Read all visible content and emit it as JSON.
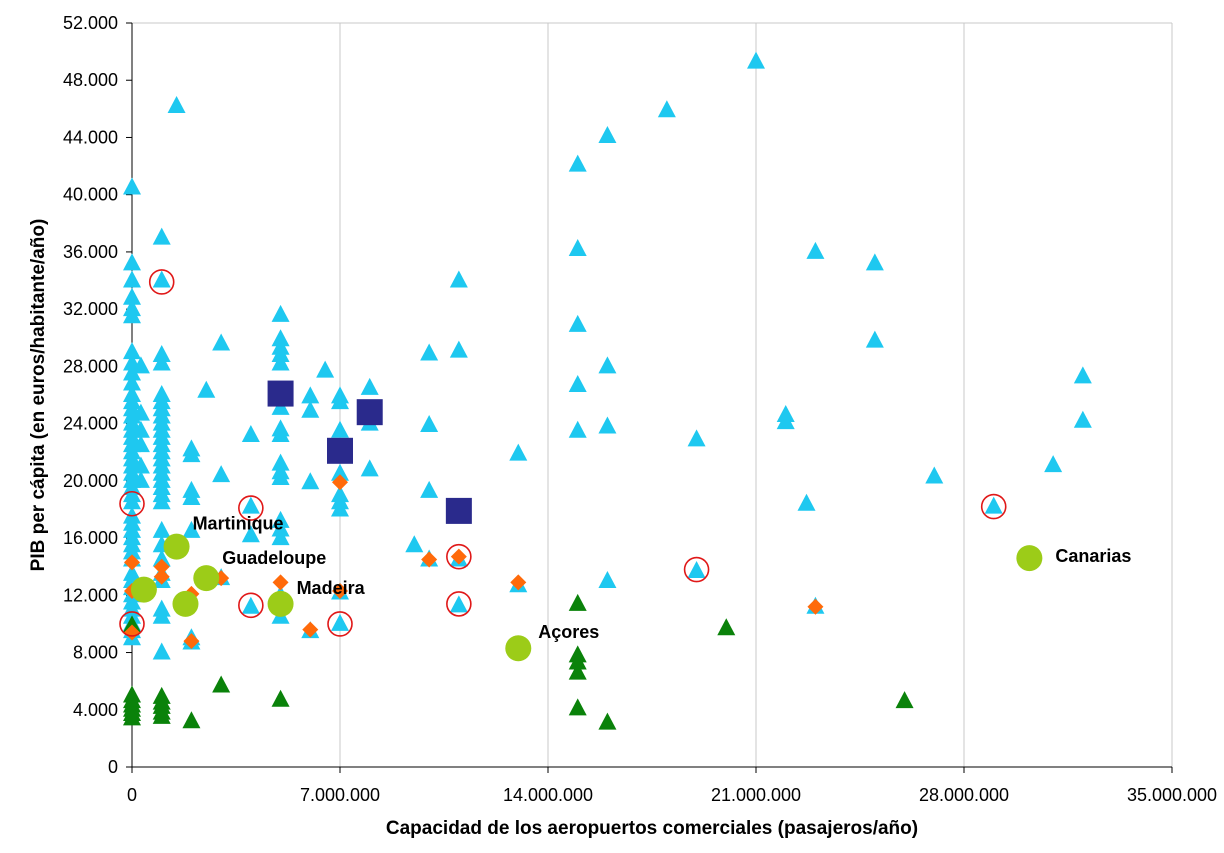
{
  "chart_data": {
    "type": "scatter",
    "title": "",
    "xlabel": "Capacidad de los aeropuertos comerciales (pasajeros/año)",
    "ylabel": "PIB per cápita (en euros/habitante/año)",
    "xlim": [
      0,
      35000000
    ],
    "ylim": [
      0,
      52000
    ],
    "x_ticks": [
      "0",
      "7.000.000",
      "14.000.000",
      "21.000.000",
      "28.000.000",
      "35.000.000"
    ],
    "y_ticks": [
      "0",
      "4.000",
      "8.000",
      "12.000",
      "16.000",
      "20.000",
      "24.000",
      "28.000",
      "32.000",
      "36.000",
      "40.000",
      "44.000",
      "48.000",
      "52.000"
    ],
    "grid": "vertical",
    "legend": "none",
    "colors": {
      "triangle_light": "#1ec8f0",
      "triangle_dark": "#0a820a",
      "diamond": "#ff6a0a",
      "square": "#2a2a8c",
      "circle": "#9ccc18",
      "ring": "#e01818"
    },
    "series": [
      {
        "marker": "triangle-light-blue",
        "points": [
          [
            0,
            40500
          ],
          [
            0,
            35200
          ],
          [
            0,
            34000
          ],
          [
            0,
            32800
          ],
          [
            0,
            32000
          ],
          [
            0,
            31500
          ],
          [
            0,
            29000
          ],
          [
            0,
            28200
          ],
          [
            0,
            27500
          ],
          [
            0,
            26800
          ],
          [
            0,
            26000
          ],
          [
            0,
            25500
          ],
          [
            0,
            25000
          ],
          [
            0,
            24500
          ],
          [
            0,
            24000
          ],
          [
            0,
            23500
          ],
          [
            0,
            23000
          ],
          [
            0,
            22500
          ],
          [
            0,
            22000
          ],
          [
            0,
            21500
          ],
          [
            0,
            21000
          ],
          [
            0,
            20500
          ],
          [
            0,
            20000
          ],
          [
            0,
            19500
          ],
          [
            0,
            19000
          ],
          [
            0,
            18500
          ],
          [
            0,
            17500
          ],
          [
            0,
            17000
          ],
          [
            0,
            16500
          ],
          [
            0,
            16000
          ],
          [
            0,
            15500
          ],
          [
            0,
            15000
          ],
          [
            0,
            14500
          ],
          [
            0,
            13500
          ],
          [
            0,
            13000
          ],
          [
            0,
            12500
          ],
          [
            0,
            12000
          ],
          [
            0,
            11500
          ],
          [
            0,
            11000
          ],
          [
            0,
            10500
          ],
          [
            0,
            10000
          ],
          [
            0,
            9500
          ],
          [
            0,
            9000
          ],
          [
            300,
            28000
          ],
          [
            300,
            24700
          ],
          [
            300,
            23500
          ],
          [
            300,
            22500
          ],
          [
            300,
            21000
          ],
          [
            300,
            20000
          ],
          [
            1000,
            37000
          ],
          [
            1000,
            34000
          ],
          [
            1000,
            28800
          ],
          [
            1000,
            28200
          ],
          [
            1000,
            26000
          ],
          [
            1000,
            25500
          ],
          [
            1000,
            25000
          ],
          [
            1000,
            24500
          ],
          [
            1000,
            24000
          ],
          [
            1000,
            23500
          ],
          [
            1000,
            23000
          ],
          [
            1000,
            22500
          ],
          [
            1000,
            22000
          ],
          [
            1000,
            21500
          ],
          [
            1000,
            21000
          ],
          [
            1000,
            20500
          ],
          [
            1000,
            20000
          ],
          [
            1000,
            19500
          ],
          [
            1000,
            19000
          ],
          [
            1000,
            18500
          ],
          [
            1000,
            16500
          ],
          [
            1000,
            15500
          ],
          [
            1000,
            14500
          ],
          [
            1000,
            13500
          ],
          [
            1000,
            13000
          ],
          [
            1000,
            11000
          ],
          [
            1000,
            10500
          ],
          [
            1000,
            8000
          ],
          [
            1500,
            46200
          ],
          [
            2000,
            22200
          ],
          [
            2000,
            21800
          ],
          [
            2000,
            19300
          ],
          [
            2000,
            18800
          ],
          [
            2000,
            16500
          ],
          [
            2000,
            9000
          ],
          [
            2000,
            8700
          ],
          [
            2500,
            26300
          ],
          [
            3000,
            29600
          ],
          [
            3000,
            20400
          ],
          [
            3000,
            13200
          ],
          [
            4000,
            23200
          ],
          [
            4000,
            18200
          ],
          [
            4000,
            16200
          ],
          [
            4000,
            11200
          ],
          [
            5000,
            31600
          ],
          [
            5000,
            29900
          ],
          [
            5000,
            29300
          ],
          [
            5000,
            28800
          ],
          [
            5000,
            28200
          ],
          [
            5000,
            25100
          ],
          [
            5000,
            23600
          ],
          [
            5000,
            23200
          ],
          [
            5000,
            21200
          ],
          [
            5000,
            20600
          ],
          [
            5000,
            20200
          ],
          [
            5000,
            17200
          ],
          [
            5000,
            16600
          ],
          [
            5000,
            16000
          ],
          [
            5000,
            12000
          ],
          [
            5000,
            11500
          ],
          [
            5000,
            10500
          ],
          [
            6000,
            25900
          ],
          [
            6000,
            24900
          ],
          [
            6000,
            19900
          ],
          [
            6000,
            9500
          ],
          [
            6500,
            27700
          ],
          [
            7000,
            25900
          ],
          [
            7000,
            25500
          ],
          [
            7000,
            23500
          ],
          [
            7000,
            20500
          ],
          [
            7000,
            19000
          ],
          [
            7000,
            18500
          ],
          [
            7000,
            18000
          ],
          [
            7000,
            12200
          ],
          [
            7000,
            10000
          ],
          [
            8000,
            26500
          ],
          [
            8000,
            24000
          ],
          [
            8000,
            20800
          ],
          [
            9500,
            15500
          ],
          [
            10000,
            28900
          ],
          [
            10000,
            23900
          ],
          [
            10000,
            19300
          ],
          [
            10000,
            14500
          ],
          [
            11000,
            34000
          ],
          [
            11000,
            29100
          ],
          [
            11000,
            14500
          ],
          [
            11000,
            11300
          ],
          [
            13000,
            21900
          ],
          [
            13000,
            12700
          ],
          [
            15000,
            42100
          ],
          [
            15000,
            36200
          ],
          [
            15000,
            30900
          ],
          [
            15000,
            26700
          ],
          [
            15000,
            23500
          ],
          [
            16000,
            44100
          ],
          [
            16000,
            28000
          ],
          [
            16000,
            23800
          ],
          [
            16000,
            13000
          ],
          [
            18000,
            45900
          ],
          [
            19000,
            22900
          ],
          [
            19000,
            13700
          ],
          [
            21000,
            49300
          ],
          [
            22000,
            24600
          ],
          [
            22000,
            24100
          ],
          [
            22700,
            18400
          ],
          [
            23000,
            36000
          ],
          [
            23000,
            11200
          ],
          [
            25000,
            35200
          ],
          [
            25000,
            29800
          ],
          [
            27000,
            20300
          ],
          [
            29000,
            18200
          ],
          [
            31000,
            21100
          ],
          [
            32000,
            27300
          ],
          [
            32000,
            24200
          ]
        ]
      },
      {
        "marker": "triangle-dark-green",
        "points": [
          [
            0,
            9900
          ],
          [
            0,
            5000
          ],
          [
            0,
            4600
          ],
          [
            0,
            4300
          ],
          [
            0,
            4000
          ],
          [
            0,
            3700
          ],
          [
            0,
            3400
          ],
          [
            1000,
            4900
          ],
          [
            1000,
            4500
          ],
          [
            1000,
            4200
          ],
          [
            1000,
            3800
          ],
          [
            1000,
            3500
          ],
          [
            2000,
            3200
          ],
          [
            3000,
            5700
          ],
          [
            5000,
            4700
          ],
          [
            15000,
            11400
          ],
          [
            15000,
            7800
          ],
          [
            15000,
            7300
          ],
          [
            15000,
            6600
          ],
          [
            15000,
            4100
          ],
          [
            16000,
            3100
          ],
          [
            20000,
            9700
          ],
          [
            26000,
            4600
          ]
        ]
      },
      {
        "marker": "diamond-orange",
        "points": [
          [
            0,
            14300
          ],
          [
            0,
            12300
          ],
          [
            0,
            9400
          ],
          [
            1000,
            14000
          ],
          [
            1000,
            13300
          ],
          [
            2000,
            12100
          ],
          [
            2000,
            8800
          ],
          [
            3000,
            13200
          ],
          [
            5000,
            12900
          ],
          [
            6000,
            9600
          ],
          [
            7000,
            19900
          ],
          [
            7000,
            12300
          ],
          [
            10000,
            14500
          ],
          [
            11000,
            14700
          ],
          [
            13000,
            12900
          ],
          [
            23000,
            11200
          ]
        ]
      },
      {
        "marker": "square-navy",
        "points": [
          [
            5000,
            26100
          ],
          [
            7000,
            22100
          ],
          [
            8000,
            24800
          ],
          [
            11000,
            17900
          ]
        ]
      },
      {
        "marker": "circle-green",
        "points": [
          [
            400,
            12400
          ],
          [
            1500,
            15400
          ],
          [
            1800,
            11400
          ],
          [
            2500,
            13200
          ],
          [
            5000,
            11400
          ],
          [
            13000,
            8300
          ],
          [
            30200,
            14600
          ]
        ]
      },
      {
        "marker": "ring-red",
        "points": [
          [
            0,
            18400
          ],
          [
            0,
            10000
          ],
          [
            1000,
            33900
          ],
          [
            4000,
            18100
          ],
          [
            4000,
            11300
          ],
          [
            7000,
            10000
          ],
          [
            11000,
            14700
          ],
          [
            11000,
            11400
          ],
          [
            19000,
            13800
          ],
          [
            29000,
            18200
          ]
        ]
      }
    ],
    "annotations": [
      {
        "text": "Martinique",
        "x": 1500,
        "y": 15400
      },
      {
        "text": "Guadeloupe",
        "x": 2500,
        "y": 13200
      },
      {
        "text": "Madeira",
        "x": 5000,
        "y": 11400
      },
      {
        "text": "Açores",
        "x": 13000,
        "y": 8300
      },
      {
        "text": "Canarias",
        "x": 30200,
        "y": 14600
      }
    ]
  }
}
